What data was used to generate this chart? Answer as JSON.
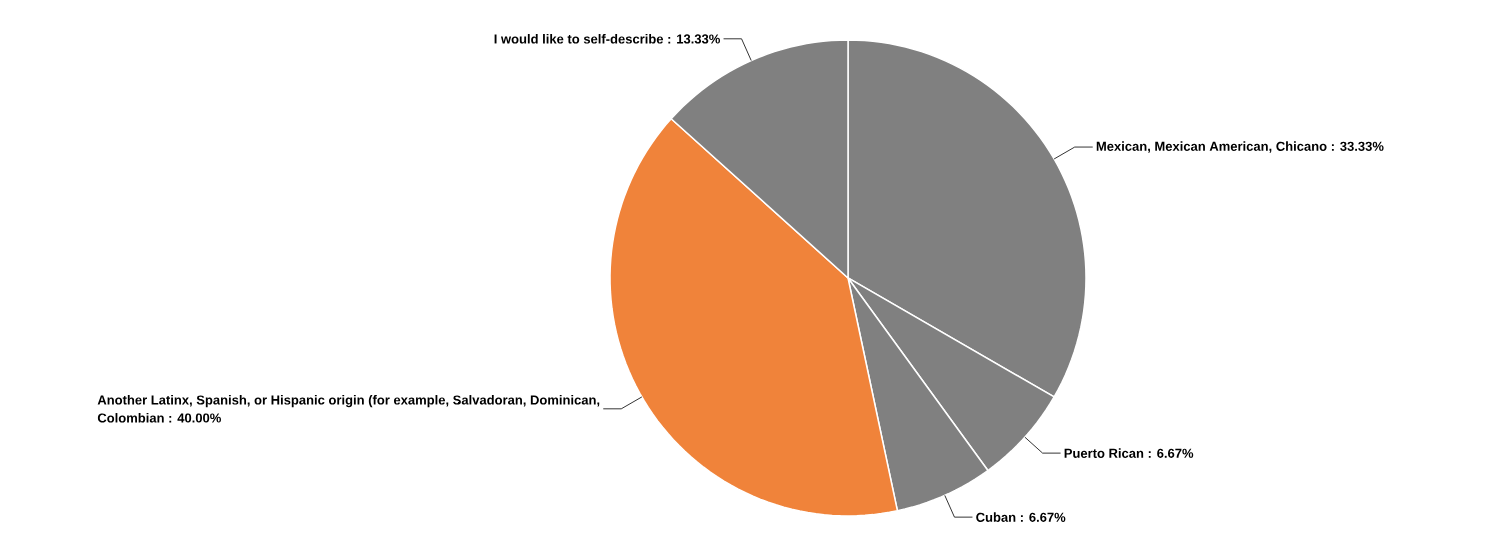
{
  "chart_data": {
    "type": "pie",
    "categories": [
      "Mexican, Mexican American, Chicano",
      "Puerto Rican",
      "Cuban",
      "Another Latinx, Spanish, or Hispanic origin (for example, Salvadoran, Dominican, Colombian",
      "I would like to self-describe"
    ],
    "values": [
      33.33,
      6.67,
      6.67,
      40.0,
      13.33
    ],
    "value_labels": [
      ": 33.33%",
      ": 6.67%",
      ": 6.67%",
      ": 40.00%",
      ": 13.33%"
    ],
    "colors": [
      "#808080",
      "#808080",
      "#808080",
      "#f0833a",
      "#808080"
    ]
  }
}
